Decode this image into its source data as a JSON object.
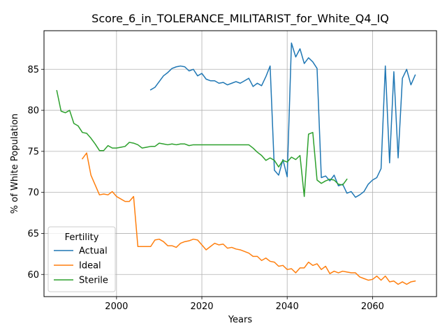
{
  "chart_data": {
    "type": "line",
    "title": "Score_6_in_TOLERANCE_MILITARIST_for_White_Q4_IQ",
    "xlabel": "Years",
    "ylabel": "% of White Population",
    "xlim": [
      1983,
      2075
    ],
    "ylim": [
      57.3,
      89.7
    ],
    "xticks": [
      2000,
      2020,
      2040,
      2060
    ],
    "yticks": [
      60,
      65,
      70,
      75,
      80,
      85
    ],
    "grid": true,
    "legend": {
      "title": "Fertility",
      "placement": "lower-left"
    },
    "series": [
      {
        "name": "Actual",
        "color": "#1f77b4",
        "x": [
          2008,
          2009,
          2010,
          2011,
          2012,
          2013,
          2014,
          2015,
          2016,
          2017,
          2018,
          2019,
          2020,
          2021,
          2022,
          2023,
          2024,
          2025,
          2026,
          2027,
          2028,
          2029,
          2030,
          2031,
          2032,
          2033,
          2034,
          2035,
          2036,
          2037,
          2038,
          2039,
          2040,
          2041,
          2042,
          2043,
          2044,
          2045,
          2046,
          2047,
          2048,
          2049,
          2050,
          2051,
          2052,
          2053,
          2054,
          2055,
          2056,
          2057,
          2058,
          2059,
          2060,
          2061,
          2062,
          2063,
          2064,
          2065,
          2066,
          2067,
          2068,
          2069,
          2070
        ],
        "y": [
          82.5,
          82.8,
          83.5,
          84.2,
          84.6,
          85.1,
          85.3,
          85.4,
          85.3,
          84.8,
          85.0,
          84.2,
          84.5,
          83.8,
          83.6,
          83.6,
          83.3,
          83.4,
          83.1,
          83.3,
          83.5,
          83.3,
          83.6,
          83.9,
          82.9,
          83.3,
          83.0,
          84.1,
          85.4,
          72.7,
          72.1,
          74.0,
          71.9,
          88.2,
          86.5,
          87.5,
          85.7,
          86.4,
          85.9,
          85.1,
          71.8,
          72.0,
          71.4,
          72.1,
          70.8,
          71.0,
          69.9,
          70.1,
          69.4,
          69.7,
          70.1,
          71.0,
          71.5,
          71.8,
          72.9,
          85.4,
          73.6,
          84.7,
          74.2,
          83.9,
          85.0,
          83.1,
          84.3
        ]
      },
      {
        "name": "Ideal",
        "color": "#ff7f0e",
        "x": [
          1992,
          1993,
          1994,
          1995,
          1996,
          1997,
          1998,
          1999,
          2000,
          2001,
          2002,
          2003,
          2004,
          2005,
          2006,
          2007,
          2008,
          2009,
          2010,
          2011,
          2012,
          2013,
          2014,
          2015,
          2016,
          2017,
          2018,
          2019,
          2020,
          2021,
          2022,
          2023,
          2024,
          2025,
          2026,
          2027,
          2028,
          2029,
          2030,
          2031,
          2032,
          2033,
          2034,
          2035,
          2036,
          2037,
          2038,
          2039,
          2040,
          2041,
          2042,
          2043,
          2044,
          2045,
          2046,
          2047,
          2048,
          2049,
          2050,
          2051,
          2052,
          2053,
          2054,
          2055,
          2056,
          2057,
          2058,
          2059,
          2060,
          2061,
          2062,
          2063,
          2064,
          2065,
          2066,
          2067,
          2068,
          2069,
          2070
        ],
        "y": [
          74.1,
          74.8,
          72.1,
          70.9,
          69.7,
          69.8,
          69.7,
          70.1,
          69.5,
          69.2,
          68.9,
          68.9,
          69.5,
          63.4,
          63.4,
          63.4,
          63.4,
          64.2,
          64.3,
          64.0,
          63.5,
          63.5,
          63.3,
          63.8,
          64.0,
          64.1,
          64.3,
          64.2,
          63.6,
          63.0,
          63.4,
          63.8,
          63.6,
          63.7,
          63.2,
          63.3,
          63.1,
          63.0,
          62.8,
          62.6,
          62.2,
          62.2,
          61.7,
          62.0,
          61.6,
          61.5,
          61.0,
          61.1,
          60.6,
          60.7,
          60.2,
          60.8,
          60.8,
          61.5,
          61.1,
          61.3,
          60.6,
          61.0,
          60.1,
          60.4,
          60.2,
          60.4,
          60.3,
          60.2,
          60.2,
          59.7,
          59.5,
          59.3,
          59.4,
          59.8,
          59.3,
          59.8,
          59.1,
          59.2,
          58.8,
          59.1,
          58.8,
          59.1,
          59.2
        ]
      },
      {
        "name": "Sterile",
        "color": "#2ca02c",
        "x": [
          1986,
          1987,
          1988,
          1989,
          1990,
          1991,
          1992,
          1993,
          1994,
          1995,
          1996,
          1997,
          1998,
          1999,
          2000,
          2001,
          2002,
          2003,
          2004,
          2005,
          2006,
          2007,
          2008,
          2009,
          2010,
          2011,
          2012,
          2013,
          2014,
          2015,
          2016,
          2017,
          2018,
          2019,
          2020,
          2021,
          2022,
          2023,
          2024,
          2025,
          2026,
          2027,
          2028,
          2029,
          2030,
          2031,
          2032,
          2033,
          2034,
          2035,
          2036,
          2037,
          2038,
          2039,
          2040,
          2041,
          2042,
          2043,
          2044,
          2045,
          2046,
          2047,
          2048,
          2049,
          2050,
          2051,
          2052,
          2053,
          2054
        ],
        "y": [
          82.4,
          79.9,
          79.7,
          80.0,
          78.4,
          78.1,
          77.3,
          77.2,
          76.6,
          75.9,
          75.1,
          75.1,
          75.7,
          75.4,
          75.4,
          75.5,
          75.6,
          76.1,
          76.0,
          75.8,
          75.4,
          75.5,
          75.6,
          75.6,
          76.0,
          75.9,
          75.8,
          75.9,
          75.8,
          75.9,
          75.9,
          75.7,
          75.8,
          75.8,
          75.8,
          75.8,
          75.8,
          75.8,
          75.8,
          75.8,
          75.8,
          75.8,
          75.8,
          75.8,
          75.8,
          75.8,
          75.4,
          74.9,
          74.5,
          73.9,
          74.2,
          73.9,
          73.1,
          73.9,
          73.7,
          74.3,
          74.0,
          74.5,
          69.5,
          77.1,
          77.3,
          71.5,
          71.1,
          71.4,
          71.6,
          71.5,
          71.0,
          70.9,
          71.6
        ]
      }
    ]
  }
}
